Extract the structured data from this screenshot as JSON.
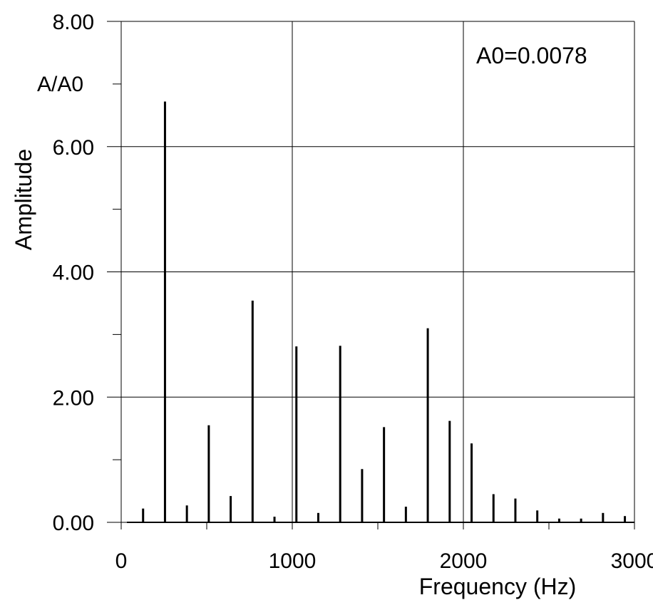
{
  "chart_data": {
    "type": "bar",
    "title": "",
    "xlabel": "Frequency (Hz)",
    "ylabel": "Amplitude",
    "y_unit_label": "A/A0",
    "annotation": "A0=0.0078",
    "xlim": [
      0,
      3000
    ],
    "ylim": [
      0,
      8
    ],
    "grid": true,
    "x_ticks": [
      0,
      1000,
      2000,
      3000
    ],
    "x_tick_labels": [
      "0",
      "1000",
      "2000",
      "3000"
    ],
    "y_ticks": [
      0,
      2,
      4,
      6,
      8
    ],
    "y_tick_labels": [
      "0.00",
      "2.00",
      "4.00",
      "6.00",
      "8.00"
    ],
    "x": [
      128,
      256,
      384,
      512,
      640,
      768,
      896,
      1024,
      1152,
      1280,
      1408,
      1536,
      1664,
      1792,
      1920,
      2048,
      2176,
      2304,
      2432,
      2560,
      2688,
      2816,
      2944
    ],
    "values": [
      0.22,
      6.72,
      0.27,
      1.55,
      0.42,
      3.54,
      0.09,
      2.81,
      0.15,
      2.82,
      0.85,
      1.52,
      0.25,
      3.1,
      1.62,
      1.26,
      0.45,
      0.38,
      0.19,
      0.06,
      0.06,
      0.15,
      0.1
    ],
    "colors": {
      "line": "#000000",
      "grid": "#000000",
      "background": "#ffffff"
    }
  }
}
